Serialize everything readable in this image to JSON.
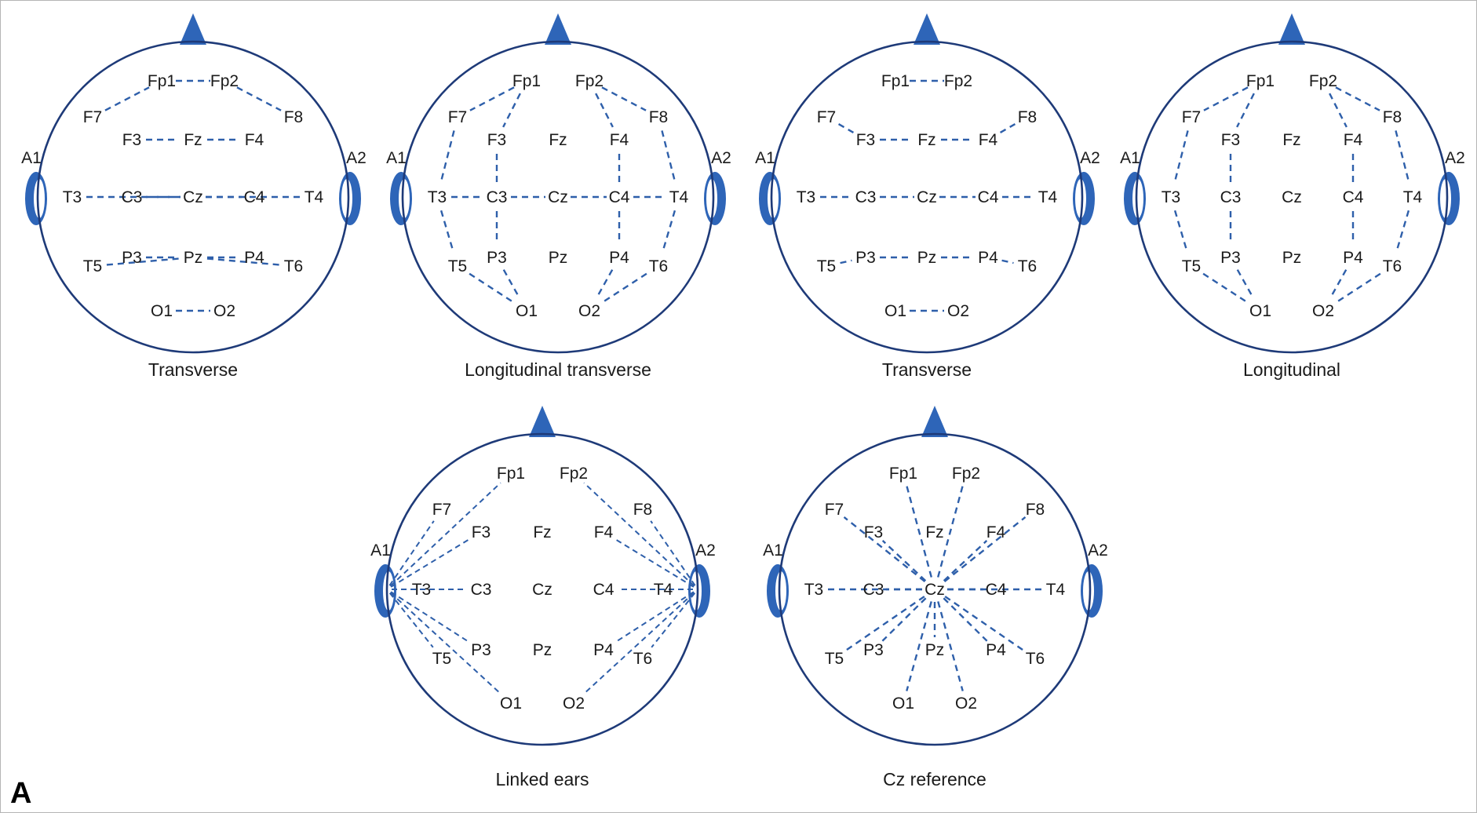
{
  "figure": {
    "panel_letter": "A",
    "electrode_labels": {
      "Fp1": "Fp1",
      "Fp2": "Fp2",
      "F7": "F7",
      "F8": "F8",
      "F3": "F3",
      "Fz": "Fz",
      "F4": "F4",
      "T3": "T3",
      "C3": "C3",
      "Cz": "Cz",
      "C4": "C4",
      "T4": "T4",
      "T5": "T5",
      "P3": "P3",
      "Pz": "Pz",
      "P4": "P4",
      "T6": "T6",
      "O1": "O1",
      "O2": "O2",
      "A1": "A1",
      "A2": "A2"
    },
    "montages": [
      {
        "caption": "Transverse",
        "links": [
          [
            "Fp1",
            "Fp2"
          ],
          [
            "F7",
            "Fp1"
          ],
          [
            "Fp2",
            "F8"
          ],
          [
            "F3",
            "Fz"
          ],
          [
            "Fz",
            "F4"
          ],
          [
            "T3",
            "Cz"
          ],
          [
            "Cz",
            "T4"
          ],
          [
            "C3",
            "Cz"
          ],
          [
            "Cz",
            "C4"
          ],
          [
            "P3",
            "Pz"
          ],
          [
            "Pz",
            "P4"
          ],
          [
            "T5",
            "Pz"
          ],
          [
            "Pz",
            "T6"
          ],
          [
            "O1",
            "O2"
          ]
        ]
      },
      {
        "caption": "Longitudinal transverse",
        "links": [
          [
            "Fp1",
            "F7"
          ],
          [
            "F7",
            "T3"
          ],
          [
            "T3",
            "T5"
          ],
          [
            "T5",
            "O1"
          ],
          [
            "Fp1",
            "F3"
          ],
          [
            "F3",
            "C3"
          ],
          [
            "C3",
            "P3"
          ],
          [
            "P3",
            "O1"
          ],
          [
            "Fp2",
            "F4"
          ],
          [
            "F4",
            "C4"
          ],
          [
            "C4",
            "P4"
          ],
          [
            "P4",
            "O2"
          ],
          [
            "Fp2",
            "F8"
          ],
          [
            "F8",
            "T4"
          ],
          [
            "T4",
            "T6"
          ],
          [
            "T6",
            "O2"
          ],
          [
            "T3",
            "C3"
          ],
          [
            "C3",
            "Cz"
          ],
          [
            "Cz",
            "C4"
          ],
          [
            "C4",
            "T4"
          ]
        ]
      },
      {
        "caption": "Transverse",
        "links": [
          [
            "Fp1",
            "Fp2"
          ],
          [
            "F7",
            "F3"
          ],
          [
            "F3",
            "Fz"
          ],
          [
            "Fz",
            "F4"
          ],
          [
            "F4",
            "F8"
          ],
          [
            "T3",
            "C3"
          ],
          [
            "C3",
            "Cz"
          ],
          [
            "Cz",
            "C4"
          ],
          [
            "C4",
            "T4"
          ],
          [
            "T5",
            "P3"
          ],
          [
            "P3",
            "Pz"
          ],
          [
            "Pz",
            "P4"
          ],
          [
            "P4",
            "T6"
          ],
          [
            "O1",
            "O2"
          ]
        ]
      },
      {
        "caption": "Longitudinal",
        "links": [
          [
            "Fp1",
            "F7"
          ],
          [
            "F7",
            "T3"
          ],
          [
            "T3",
            "T5"
          ],
          [
            "T5",
            "O1"
          ],
          [
            "Fp1",
            "F3"
          ],
          [
            "F3",
            "C3"
          ],
          [
            "C3",
            "P3"
          ],
          [
            "P3",
            "O1"
          ],
          [
            "Fp2",
            "F4"
          ],
          [
            "F4",
            "C4"
          ],
          [
            "C4",
            "P4"
          ],
          [
            "P4",
            "O2"
          ],
          [
            "Fp2",
            "F8"
          ],
          [
            "F8",
            "T4"
          ],
          [
            "T4",
            "T6"
          ],
          [
            "T6",
            "O2"
          ]
        ]
      },
      {
        "caption": "Linked ears",
        "links": [
          [
            "A1",
            "Fp1"
          ],
          [
            "A1",
            "F7"
          ],
          [
            "A1",
            "F3"
          ],
          [
            "A1",
            "T3"
          ],
          [
            "A1",
            "C3"
          ],
          [
            "A1",
            "T5"
          ],
          [
            "A1",
            "P3"
          ],
          [
            "A1",
            "O1"
          ],
          [
            "A2",
            "Fp2"
          ],
          [
            "A2",
            "F8"
          ],
          [
            "A2",
            "F4"
          ],
          [
            "A2",
            "T4"
          ],
          [
            "A2",
            "C4"
          ],
          [
            "A2",
            "T6"
          ],
          [
            "A2",
            "P4"
          ],
          [
            "A2",
            "O2"
          ]
        ]
      },
      {
        "caption": "Cz reference",
        "links": [
          [
            "Cz",
            "Fp1"
          ],
          [
            "Cz",
            "Fp2"
          ],
          [
            "Cz",
            "F7"
          ],
          [
            "Cz",
            "F3"
          ],
          [
            "Cz",
            "F4"
          ],
          [
            "Cz",
            "F8"
          ],
          [
            "Cz",
            "T3"
          ],
          [
            "Cz",
            "C3"
          ],
          [
            "Cz",
            "C4"
          ],
          [
            "Cz",
            "T4"
          ],
          [
            "Cz",
            "T5"
          ],
          [
            "Cz",
            "P3"
          ],
          [
            "Cz",
            "Pz"
          ],
          [
            "Cz",
            "P4"
          ],
          [
            "Cz",
            "T6"
          ],
          [
            "Cz",
            "O1"
          ],
          [
            "Cz",
            "O2"
          ]
        ]
      }
    ]
  }
}
